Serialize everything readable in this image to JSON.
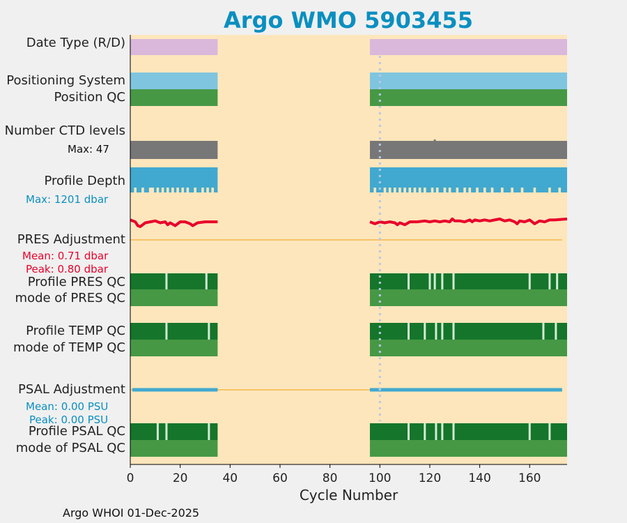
{
  "title": "Argo WMO 5903455",
  "footer": "Argo WHOI 01-Dec-2025",
  "colors": {
    "background": "#fde6bb",
    "title": "#0a8fc0",
    "date_type": "#d9b8db",
    "positioning": "#7fc5df",
    "qc_good": "#469845",
    "qc_dark": "#15752a",
    "qc_tick": "#d4ecd4",
    "ctd": "#777777",
    "depth": "#41a9cf",
    "pres_line": "#e8002a",
    "psal_line": "#41a9cf",
    "zero_line": "#f5b74c",
    "vline": "#b8c7e6"
  },
  "labels": {
    "date_type": "Date Type (R/D)",
    "positioning_system": "Positioning System",
    "position_qc": "Position QC",
    "number_ctd": "Number CTD levels",
    "ctd_max": "Max: 47",
    "profile_depth": "Profile Depth",
    "depth_max": "Max: 1201 dbar",
    "pres_adjustment": "PRES Adjustment",
    "pres_mean": "Mean: 0.71 dbar",
    "pres_peak": "Peak: 0.80 dbar",
    "profile_pres_qc": "Profile PRES QC",
    "mode_pres_qc": "mode of PRES QC",
    "profile_temp_qc": "Profile TEMP QC",
    "mode_temp_qc": "mode of TEMP QC",
    "psal_adjustment": "PSAL Adjustment",
    "psal_mean": "Mean: 0.00 PSU",
    "psal_peak": "Peak: 0.00 PSU",
    "profile_psal_qc": "Profile PSAL QC",
    "mode_psal_qc": "mode of PSAL QC"
  },
  "chart_data": {
    "type": "bar",
    "xlabel": "Cycle Number",
    "xlim": [
      0,
      175
    ],
    "xticks": [
      0,
      20,
      40,
      60,
      80,
      100,
      120,
      140,
      160
    ],
    "segments": [
      [
        0,
        35
      ],
      [
        96,
        175
      ]
    ],
    "highlight_cycle": 100,
    "pres_adjustment": {
      "mean": 0.71,
      "peak": 0.8,
      "unit": "dbar",
      "x": [
        0,
        2,
        3,
        4,
        6,
        8,
        10,
        12,
        14,
        15,
        16,
        18,
        20,
        22,
        24,
        25,
        27,
        30,
        35,
        96,
        98,
        100,
        102,
        104,
        106,
        107,
        108,
        110,
        112,
        115,
        118,
        120,
        122,
        124,
        126,
        128,
        129,
        130,
        132,
        134,
        136,
        137,
        138,
        140,
        142,
        144,
        146,
        148,
        150,
        152,
        154,
        155,
        156,
        158,
        160,
        162,
        164,
        166,
        168,
        170,
        175
      ],
      "y": [
        0.76,
        0.74,
        0.7,
        0.69,
        0.73,
        0.74,
        0.75,
        0.73,
        0.74,
        0.71,
        0.73,
        0.7,
        0.74,
        0.74,
        0.72,
        0.7,
        0.73,
        0.74,
        0.74,
        0.74,
        0.72,
        0.74,
        0.73,
        0.74,
        0.73,
        0.71,
        0.73,
        0.71,
        0.74,
        0.74,
        0.75,
        0.74,
        0.75,
        0.74,
        0.75,
        0.74,
        0.77,
        0.75,
        0.75,
        0.74,
        0.76,
        0.74,
        0.76,
        0.75,
        0.76,
        0.75,
        0.76,
        0.77,
        0.75,
        0.76,
        0.74,
        0.72,
        0.75,
        0.74,
        0.76,
        0.72,
        0.75,
        0.74,
        0.76,
        0.76,
        0.77
      ]
    },
    "psal_adjustment": {
      "mean": 0.0,
      "peak": 0.0,
      "unit": "PSU"
    },
    "depth_max": 1201,
    "depth_dips": [
      2,
      5,
      8,
      9,
      11,
      13,
      15,
      17,
      19,
      21,
      23,
      26,
      29,
      31,
      33,
      98,
      102,
      104,
      106,
      108,
      110,
      112,
      114,
      116,
      118,
      121,
      123,
      126,
      128,
      131,
      134,
      136,
      139,
      142,
      145,
      149,
      153,
      157,
      162,
      168,
      172
    ],
    "ctd_max": 47,
    "pres_qc_flags": [
      14.5,
      30.5,
      111.5,
      120,
      122,
      125,
      129.5,
      160,
      168,
      171
    ],
    "temp_qc_flags": [
      14.5,
      31.5,
      111.5,
      118,
      122.5,
      125,
      129.5,
      165.5,
      170.5
    ],
    "psal_qc_flags": [
      11,
      14.5,
      31.5,
      111.5,
      118,
      122.5,
      125,
      129.5,
      160,
      168
    ]
  }
}
